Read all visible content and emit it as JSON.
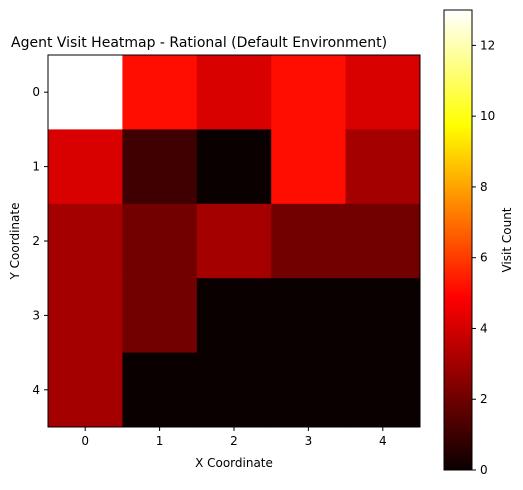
{
  "chart_data": {
    "type": "heatmap",
    "title": "Agent Visit Heatmap - Rational (Default Environment)",
    "xlabel": "X Coordinate",
    "ylabel": "Y Coordinate",
    "x_ticks": [
      "0",
      "1",
      "2",
      "3",
      "4"
    ],
    "y_ticks": [
      "0",
      "1",
      "2",
      "3",
      "4"
    ],
    "values": [
      [
        13,
        5,
        4,
        5,
        4
      ],
      [
        4,
        1,
        0,
        5,
        3
      ],
      [
        3,
        2,
        3,
        2,
        2
      ],
      [
        3,
        2,
        0,
        0,
        0
      ],
      [
        3,
        0,
        0,
        0,
        0
      ]
    ],
    "colormap": "hot",
    "colorbar": {
      "label": "Visit Count",
      "min": 0,
      "max": 13,
      "ticks": [
        "0",
        "2",
        "4",
        "6",
        "8",
        "10",
        "12"
      ]
    },
    "grid": false
  }
}
